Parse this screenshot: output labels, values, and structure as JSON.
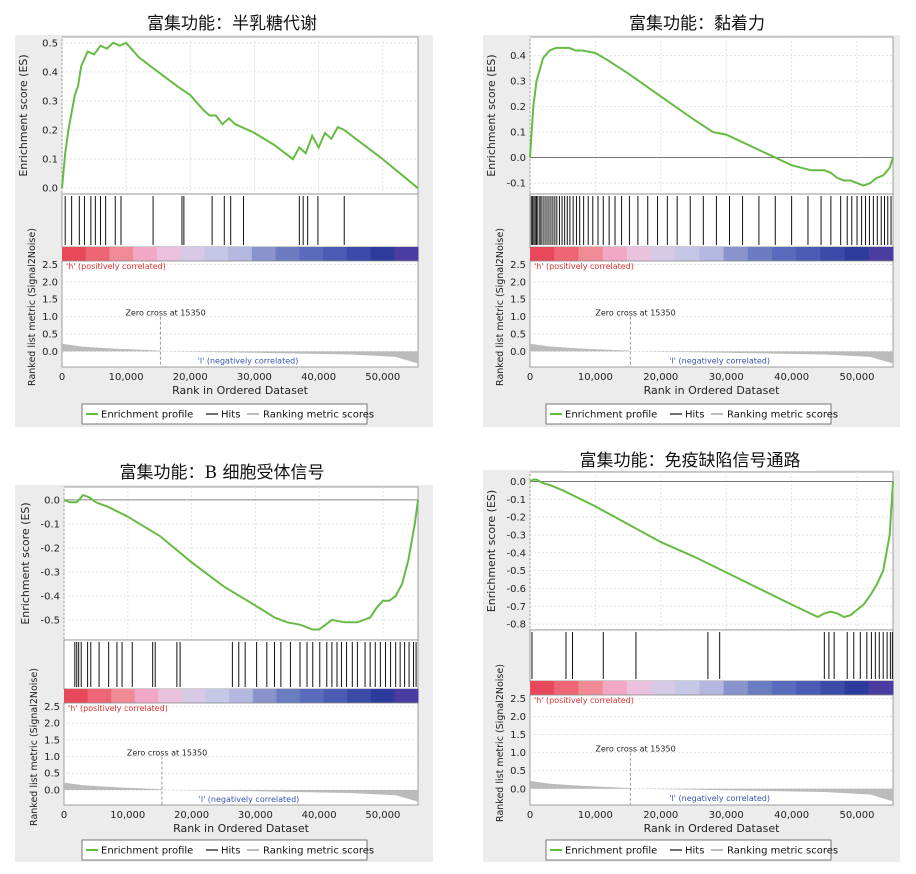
{
  "chart_data": [
    {
      "type": "line",
      "title": "富集功能：半乳糖代谢",
      "ylabel": "Enrichment score (ES)",
      "ylabel2": "Ranked list metric (Signal2Noise)",
      "xlabel": "Rank in Ordered Dataset",
      "ylim": [
        0,
        0.5
      ],
      "yticks": [
        "0.0",
        "0.1",
        "0.2",
        "0.3",
        "0.4",
        "0.5"
      ],
      "x": [
        0,
        500,
        1000,
        1500,
        2000,
        2500,
        3000,
        4000,
        5000,
        6000,
        7000,
        8000,
        9000,
        10000,
        12000,
        15000,
        18000,
        20000,
        22000,
        23000,
        24000,
        25000,
        26000,
        27000,
        30000,
        33000,
        36000,
        37000,
        38000,
        39000,
        40000,
        41000,
        42000,
        43000,
        44000,
        47000,
        50000,
        55500
      ],
      "y": [
        0,
        0.12,
        0.2,
        0.26,
        0.32,
        0.35,
        0.42,
        0.47,
        0.46,
        0.49,
        0.48,
        0.5,
        0.49,
        0.5,
        0.45,
        0.4,
        0.35,
        0.32,
        0.27,
        0.25,
        0.25,
        0.22,
        0.24,
        0.22,
        0.19,
        0.15,
        0.1,
        0.14,
        0.12,
        0.18,
        0.14,
        0.19,
        0.17,
        0.21,
        0.2,
        0.15,
        0.1,
        0.0
      ],
      "hits": [
        500,
        1500,
        2700,
        3500,
        4500,
        5200,
        6000,
        6800,
        8300,
        9200,
        14200,
        18700,
        19000,
        23400,
        25300,
        26300,
        28300,
        37000,
        37600,
        38300,
        39900,
        44000
      ],
      "ylim2": [
        0,
        2.5
      ],
      "yticks2": [
        "0.0",
        "0.5",
        "1.0",
        "1.5",
        "2.0",
        "2.5"
      ],
      "xlim": [
        0,
        55500
      ],
      "xticks": [
        "0",
        "10,000",
        "20,000",
        "30,000",
        "40,000",
        "50,000"
      ],
      "zero_cross": "Zero cross at 15350",
      "pos_label": "'h' (positively correlated)",
      "neg_label": "'l' (negatively correlated)",
      "legend": [
        "Enrichment profile",
        "Hits",
        "Ranking metric scores"
      ],
      "colors": {
        "profile": "#66bb44",
        "hits": "#111111",
        "metric": "#bbbbbb"
      }
    },
    {
      "type": "line",
      "title": "富集功能：黏着力",
      "ylabel": "Enrichment score (ES)",
      "ylabel2": "Ranked list metric (Signal2Noise)",
      "xlabel": "Rank in Ordered Dataset",
      "ylim": [
        -0.12,
        0.45
      ],
      "yticks": [
        "-0.1",
        "0.0",
        "0.1",
        "0.2",
        "0.3",
        "0.4"
      ],
      "x": [
        0,
        500,
        1000,
        2000,
        3000,
        4000,
        5000,
        6000,
        7000,
        8000,
        10000,
        12000,
        15000,
        20000,
        25000,
        28000,
        30000,
        35000,
        40000,
        43000,
        45000,
        46000,
        47000,
        48000,
        49000,
        50000,
        51000,
        52000,
        53000,
        54000,
        55000,
        55500
      ],
      "y": [
        0,
        0.2,
        0.3,
        0.39,
        0.42,
        0.43,
        0.43,
        0.43,
        0.42,
        0.42,
        0.41,
        0.38,
        0.33,
        0.24,
        0.15,
        0.1,
        0.09,
        0.03,
        -0.03,
        -0.05,
        -0.05,
        -0.06,
        -0.08,
        -0.09,
        -0.09,
        -0.1,
        -0.11,
        -0.1,
        -0.08,
        -0.07,
        -0.04,
        0.0
      ],
      "hits": [
        200,
        400,
        600,
        800,
        1000,
        1200,
        1500,
        1700,
        2000,
        2300,
        2600,
        2900,
        3200,
        3500,
        3800,
        4100,
        4500,
        4900,
        5300,
        5700,
        6100,
        6600,
        7100,
        7600,
        8200,
        8900,
        9600,
        10400,
        11200,
        12100,
        13000,
        14000,
        15200,
        16500,
        18000,
        19500,
        21000,
        22500,
        24500,
        26500,
        28500,
        30500,
        32500,
        35000,
        37500,
        40000,
        42500,
        44500,
        46000,
        47500,
        48500,
        49200,
        50000,
        50700,
        51300,
        51900,
        52500,
        53100,
        53700,
        54200,
        54700,
        55200
      ],
      "ylim2": [
        0,
        2.5
      ],
      "yticks2": [
        "0.0",
        "0.5",
        "1.0",
        "1.5",
        "2.0",
        "2.5"
      ],
      "xlim": [
        0,
        55500
      ],
      "xticks": [
        "0",
        "10,000",
        "20,000",
        "30,000",
        "40,000",
        "50,000"
      ],
      "zero_cross": "Zero cross at 15350",
      "pos_label": "'h' (positively correlated)",
      "neg_label": "'l' (negatively correlated)",
      "legend": [
        "Enrichment profile",
        "Hits",
        "Ranking metric scores"
      ],
      "colors": {
        "profile": "#66bb44",
        "hits": "#111111",
        "metric": "#bbbbbb"
      }
    },
    {
      "type": "line",
      "title": "富集功能：B 细胞受体信号",
      "ylabel": "Enrichment score (ES)",
      "ylabel2": "Ranked list metric (Signal2Noise)",
      "xlabel": "Rank in Ordered Dataset",
      "ylim": [
        -0.56,
        0.03
      ],
      "yticks": [
        "0.0",
        "-0.1",
        "-0.2",
        "-0.3",
        "-0.4",
        "-0.5"
      ],
      "x": [
        0,
        1000,
        2000,
        3000,
        4000,
        5000,
        7000,
        10000,
        15000,
        20000,
        25000,
        30000,
        33000,
        35000,
        37000,
        39000,
        40000,
        41000,
        42000,
        44000,
        46000,
        48000,
        49000,
        50000,
        51000,
        52000,
        53000,
        54000,
        55000,
        55500
      ],
      "y": [
        0,
        -0.01,
        -0.01,
        0.02,
        0.01,
        -0.01,
        -0.03,
        -0.07,
        -0.15,
        -0.26,
        -0.36,
        -0.44,
        -0.49,
        -0.51,
        -0.52,
        -0.54,
        -0.54,
        -0.52,
        -0.5,
        -0.51,
        -0.51,
        -0.49,
        -0.45,
        -0.42,
        -0.42,
        -0.4,
        -0.35,
        -0.25,
        -0.1,
        0.0
      ],
      "hits": [
        1700,
        2000,
        2300,
        2700,
        3700,
        4200,
        5500,
        7000,
        8300,
        9100,
        10700,
        13900,
        14300,
        17700,
        18200,
        26400,
        27400,
        28400,
        30200,
        31800,
        33000,
        34000,
        35500,
        37000,
        38100,
        39000,
        40100,
        41200,
        42000,
        42800,
        43500,
        44300,
        45200,
        46000,
        47200,
        48000,
        48800,
        49600,
        50400,
        51200,
        52000,
        52700,
        53400,
        54100,
        54800,
        55200
      ],
      "ylim2": [
        0,
        2.5
      ],
      "yticks2": [
        "0.0",
        "0.5",
        "1.0",
        "1.5",
        "2.0",
        "2.5"
      ],
      "xlim": [
        0,
        55500
      ],
      "xticks": [
        "0",
        "10,000",
        "20,000",
        "30,000",
        "40,000",
        "50,000"
      ],
      "zero_cross": "Zero cross at 15350",
      "pos_label": "'h' (positively correlated)",
      "neg_label": "'l' (negatively correlated)",
      "legend": [
        "Enrichment profile",
        "Hits",
        "Ranking metric scores"
      ],
      "colors": {
        "profile": "#66bb44",
        "hits": "#111111",
        "metric": "#bbbbbb"
      }
    },
    {
      "type": "line",
      "title": "富集功能：免疫缺陷信号通路",
      "ylabel": "Enrichment score (ES)",
      "ylabel2": "Ranked list metric (Signal2Noise)",
      "xlabel": "Rank in Ordered Dataset",
      "ylim": [
        -0.8,
        0.02
      ],
      "yticks": [
        "0.0",
        "-0.1",
        "-0.2",
        "-0.3",
        "-0.4",
        "-0.5",
        "-0.6",
        "-0.7",
        "-0.8"
      ],
      "x": [
        0,
        500,
        1000,
        2000,
        3000,
        5000,
        10000,
        15000,
        20000,
        25000,
        30000,
        35000,
        40000,
        44000,
        45000,
        46000,
        47000,
        48000,
        49000,
        50000,
        51000,
        52000,
        53000,
        54000,
        55000,
        55500
      ],
      "y": [
        0,
        0.01,
        0.01,
        -0.01,
        -0.02,
        -0.05,
        -0.14,
        -0.24,
        -0.34,
        -0.42,
        -0.51,
        -0.6,
        -0.69,
        -0.76,
        -0.74,
        -0.73,
        -0.74,
        -0.76,
        -0.75,
        -0.72,
        -0.69,
        -0.64,
        -0.58,
        -0.5,
        -0.3,
        0.0
      ],
      "hits": [
        300,
        5500,
        6500,
        11200,
        16200,
        27200,
        29000,
        45000,
        45700,
        46500,
        48500,
        49500,
        50500,
        51500,
        52200,
        52800,
        53400,
        54000,
        54600,
        55100,
        55400
      ],
      "ylim2": [
        0,
        2.5
      ],
      "yticks2": [
        "0.0",
        "0.5",
        "1.0",
        "1.5",
        "2.0",
        "2.5"
      ],
      "xlim": [
        0,
        55500
      ],
      "xticks": [
        "0",
        "10,000",
        "20,000",
        "30,000",
        "40,000",
        "50,000"
      ],
      "zero_cross": "Zero cross at 15350",
      "pos_label": "'h' (positively correlated)",
      "neg_label": "'l' (negatively correlated)",
      "legend": [
        "Enrichment profile",
        "Hits",
        "Ranking metric scores"
      ],
      "colors": {
        "profile": "#66bb44",
        "hits": "#111111",
        "metric": "#bbbbbb"
      }
    }
  ]
}
